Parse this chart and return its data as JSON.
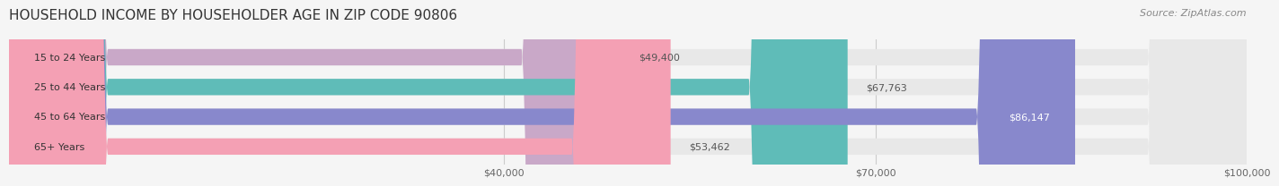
{
  "title": "HOUSEHOLD INCOME BY HOUSEHOLDER AGE IN ZIP CODE 90806",
  "source": "Source: ZipAtlas.com",
  "categories": [
    "15 to 24 Years",
    "25 to 44 Years",
    "45 to 64 Years",
    "65+ Years"
  ],
  "values": [
    49400,
    67763,
    86147,
    53462
  ],
  "bar_colors": [
    "#c9a8c8",
    "#5fbcb8",
    "#8888cc",
    "#f4a0b4"
  ],
  "bar_labels": [
    "$49,400",
    "$67,763",
    "$86,147",
    "$53,462"
  ],
  "xmin": 0,
  "xmax": 100000,
  "xticks": [
    40000,
    70000,
    100000
  ],
  "xtick_labels": [
    "$40,000",
    "$70,000",
    "$100,000"
  ],
  "background_color": "#f5f5f5",
  "bar_bg_color": "#e8e8e8",
  "title_fontsize": 11,
  "source_fontsize": 8,
  "label_fontsize": 8,
  "tick_fontsize": 8,
  "bar_height": 0.55,
  "label_color_inside": "#ffffff",
  "label_color_outside": "#555555"
}
